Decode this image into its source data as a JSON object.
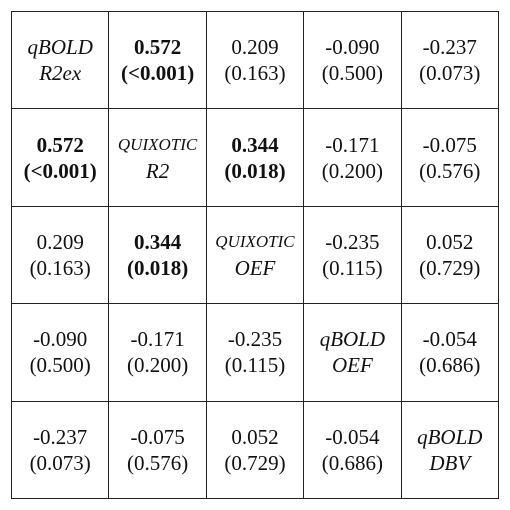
{
  "chart_data": {
    "type": "table",
    "variables": [
      "qBOLD R2ex",
      "QUIXOTIC R2",
      "QUIXOTIC OEF",
      "qBOLD OEF",
      "qBOLD DBV"
    ],
    "labels": [
      {
        "line1": "qBOLD",
        "line2": "R2ex",
        "smallcaps": false
      },
      {
        "line1": "QUIXOTIC",
        "line2": "R2",
        "smallcaps": true
      },
      {
        "line1": "QUIXOTIC",
        "line2": "OEF",
        "smallcaps": true
      },
      {
        "line1": "qBOLD",
        "line2": "OEF",
        "smallcaps": false
      },
      {
        "line1": "qBOLD",
        "line2": "DBV",
        "smallcaps": false
      }
    ],
    "rows": [
      [
        null,
        {
          "r": "0.572",
          "p": "(<0.001)",
          "bold": true
        },
        {
          "r": "0.209",
          "p": "(0.163)",
          "bold": false
        },
        {
          "r": "-0.090",
          "p": "(0.500)",
          "bold": false
        },
        {
          "r": "-0.237",
          "p": "(0.073)",
          "bold": false
        }
      ],
      [
        {
          "r": "0.572",
          "p": "(<0.001)",
          "bold": true
        },
        null,
        {
          "r": "0.344",
          "p": "(0.018)",
          "bold": true
        },
        {
          "r": "-0.171",
          "p": "(0.200)",
          "bold": false
        },
        {
          "r": "-0.075",
          "p": "(0.576)",
          "bold": false
        }
      ],
      [
        {
          "r": "0.209",
          "p": "(0.163)",
          "bold": false
        },
        {
          "r": "0.344",
          "p": "(0.018)",
          "bold": true
        },
        null,
        {
          "r": "-0.235",
          "p": "(0.115)",
          "bold": false
        },
        {
          "r": "0.052",
          "p": "(0.729)",
          "bold": false
        }
      ],
      [
        {
          "r": "-0.090",
          "p": "(0.500)",
          "bold": false
        },
        {
          "r": "-0.171",
          "p": "(0.200)",
          "bold": false
        },
        {
          "r": "-0.235",
          "p": "(0.115)",
          "bold": false
        },
        null,
        {
          "r": "-0.054",
          "p": "(0.686)",
          "bold": false
        }
      ],
      [
        {
          "r": "-0.237",
          "p": "(0.073)",
          "bold": false
        },
        {
          "r": "-0.075",
          "p": "(0.576)",
          "bold": false
        },
        {
          "r": "0.052",
          "p": "(0.729)",
          "bold": false
        },
        {
          "r": "-0.054",
          "p": "(0.686)",
          "bold": false
        },
        null
      ]
    ]
  }
}
